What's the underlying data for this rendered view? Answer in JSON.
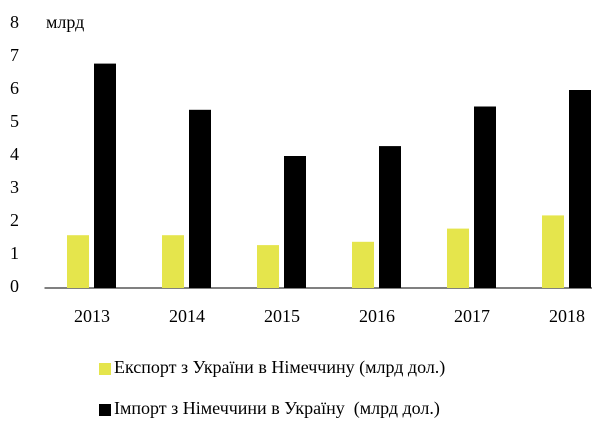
{
  "chart_data": {
    "type": "bar",
    "annotation": "млрд",
    "categories": [
      "2013",
      "2014",
      "2015",
      "2016",
      "2017",
      "2018"
    ],
    "series": [
      {
        "name": "Експорт з України в Німеччину (млрд дол.)",
        "color": "#e5e54c",
        "values": [
          1.6,
          1.6,
          1.3,
          1.4,
          1.8,
          2.2
        ]
      },
      {
        "name": "Імпорт з Німеччини в Україну  (млрд дол.)",
        "color": "#000000",
        "values": [
          6.8,
          5.4,
          4.0,
          4.3,
          5.5,
          6.0
        ]
      }
    ],
    "ylim": [
      0,
      8
    ],
    "yticks": [
      0,
      1,
      2,
      3,
      4,
      5,
      6,
      7,
      8
    ],
    "grid": false,
    "legend": "bottom"
  }
}
